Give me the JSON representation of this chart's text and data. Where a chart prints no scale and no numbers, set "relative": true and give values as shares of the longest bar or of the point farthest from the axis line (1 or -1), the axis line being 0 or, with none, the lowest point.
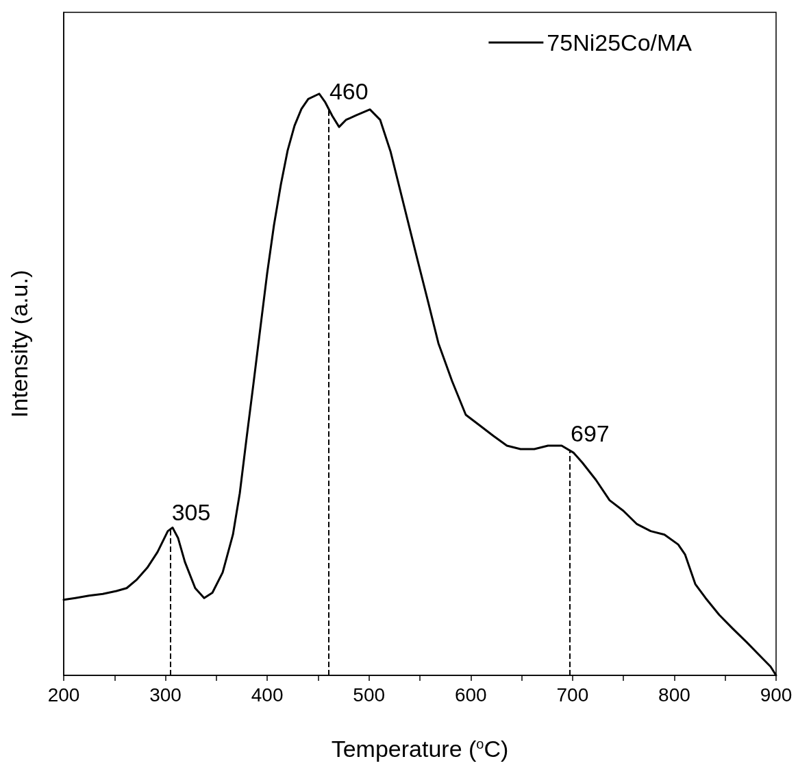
{
  "chart_data": {
    "type": "line",
    "relative": true,
    "xlabel": "Temperature ($^{o}$C)",
    "ylabel": "Intensity (a.u.)",
    "xlim": [
      200,
      900
    ],
    "xticks": [
      200,
      {
        "value": 250,
        "label": null
      },
      300,
      {
        "value": 350,
        "label": null
      },
      400,
      {
        "value": 450,
        "label": null
      },
      500,
      {
        "value": 550,
        "label": null
      },
      600,
      {
        "value": 650,
        "label": null
      },
      700,
      {
        "value": 750,
        "label": null
      },
      800,
      {
        "value": 850,
        "label": null
      },
      900
    ],
    "grid": false,
    "legend": "top right",
    "marker": "none",
    "line_style": "solid",
    "series": [
      {
        "name": "75Ni25Co/MA",
        "color": "#000000",
        "x": [
          200,
          211.4,
          224.9,
          238.4,
          251.8,
          261.9,
          272,
          282.1,
          292.2,
          302.3,
          307,
          312.4,
          319.1,
          329.2,
          338,
          346.1,
          356.2,
          366.3,
          373,
          379.7,
          386.5,
          393.2,
          399.9,
          406.6,
          413.4,
          420.1,
          426.8,
          433.6,
          440.3,
          451.1,
          457.1,
          463.9,
          470.6,
          477.3,
          487.4,
          500.9,
          511,
          521.1,
          527.8,
          537.9,
          548,
          558.1,
          568.2,
          581.6,
          595.1,
          608.6,
          622,
          635.5,
          648.9,
          662.4,
          675.9,
          689.3,
          700.8,
          709.5,
          723,
          736.4,
          749.9,
          763.3,
          776.8,
          790.3,
          803.8,
          810.5,
          820.6,
          830.7,
          844.1,
          857.6,
          871.1,
          884.5,
          894.6,
          900
        ],
        "values": [
          0.13,
          0.133,
          0.137,
          0.14,
          0.145,
          0.15,
          0.165,
          0.185,
          0.212,
          0.248,
          0.254,
          0.236,
          0.195,
          0.15,
          0.133,
          0.142,
          0.177,
          0.242,
          0.313,
          0.408,
          0.502,
          0.597,
          0.691,
          0.774,
          0.844,
          0.903,
          0.945,
          0.974,
          0.991,
          1,
          0.985,
          0.962,
          0.943,
          0.955,
          0.963,
          0.973,
          0.955,
          0.901,
          0.854,
          0.783,
          0.712,
          0.642,
          0.571,
          0.506,
          0.448,
          0.43,
          0.412,
          0.395,
          0.389,
          0.389,
          0.395,
          0.395,
          0.383,
          0.366,
          0.336,
          0.301,
          0.283,
          0.26,
          0.248,
          0.242,
          0.225,
          0.208,
          0.157,
          0.133,
          0.104,
          0.08,
          0.057,
          0.033,
          0.015,
          0
        ]
      }
    ],
    "ref_lines": [
      {
        "axis": "x",
        "value": 305,
        "label": "305",
        "line_style": "dashed",
        "color": "#000000"
      },
      {
        "axis": "x",
        "value": 460,
        "label": "460",
        "line_style": "dashed",
        "color": "#000000"
      },
      {
        "axis": "x",
        "value": 697,
        "label": "697",
        "line_style": "dashed",
        "color": "#000000"
      }
    ]
  }
}
